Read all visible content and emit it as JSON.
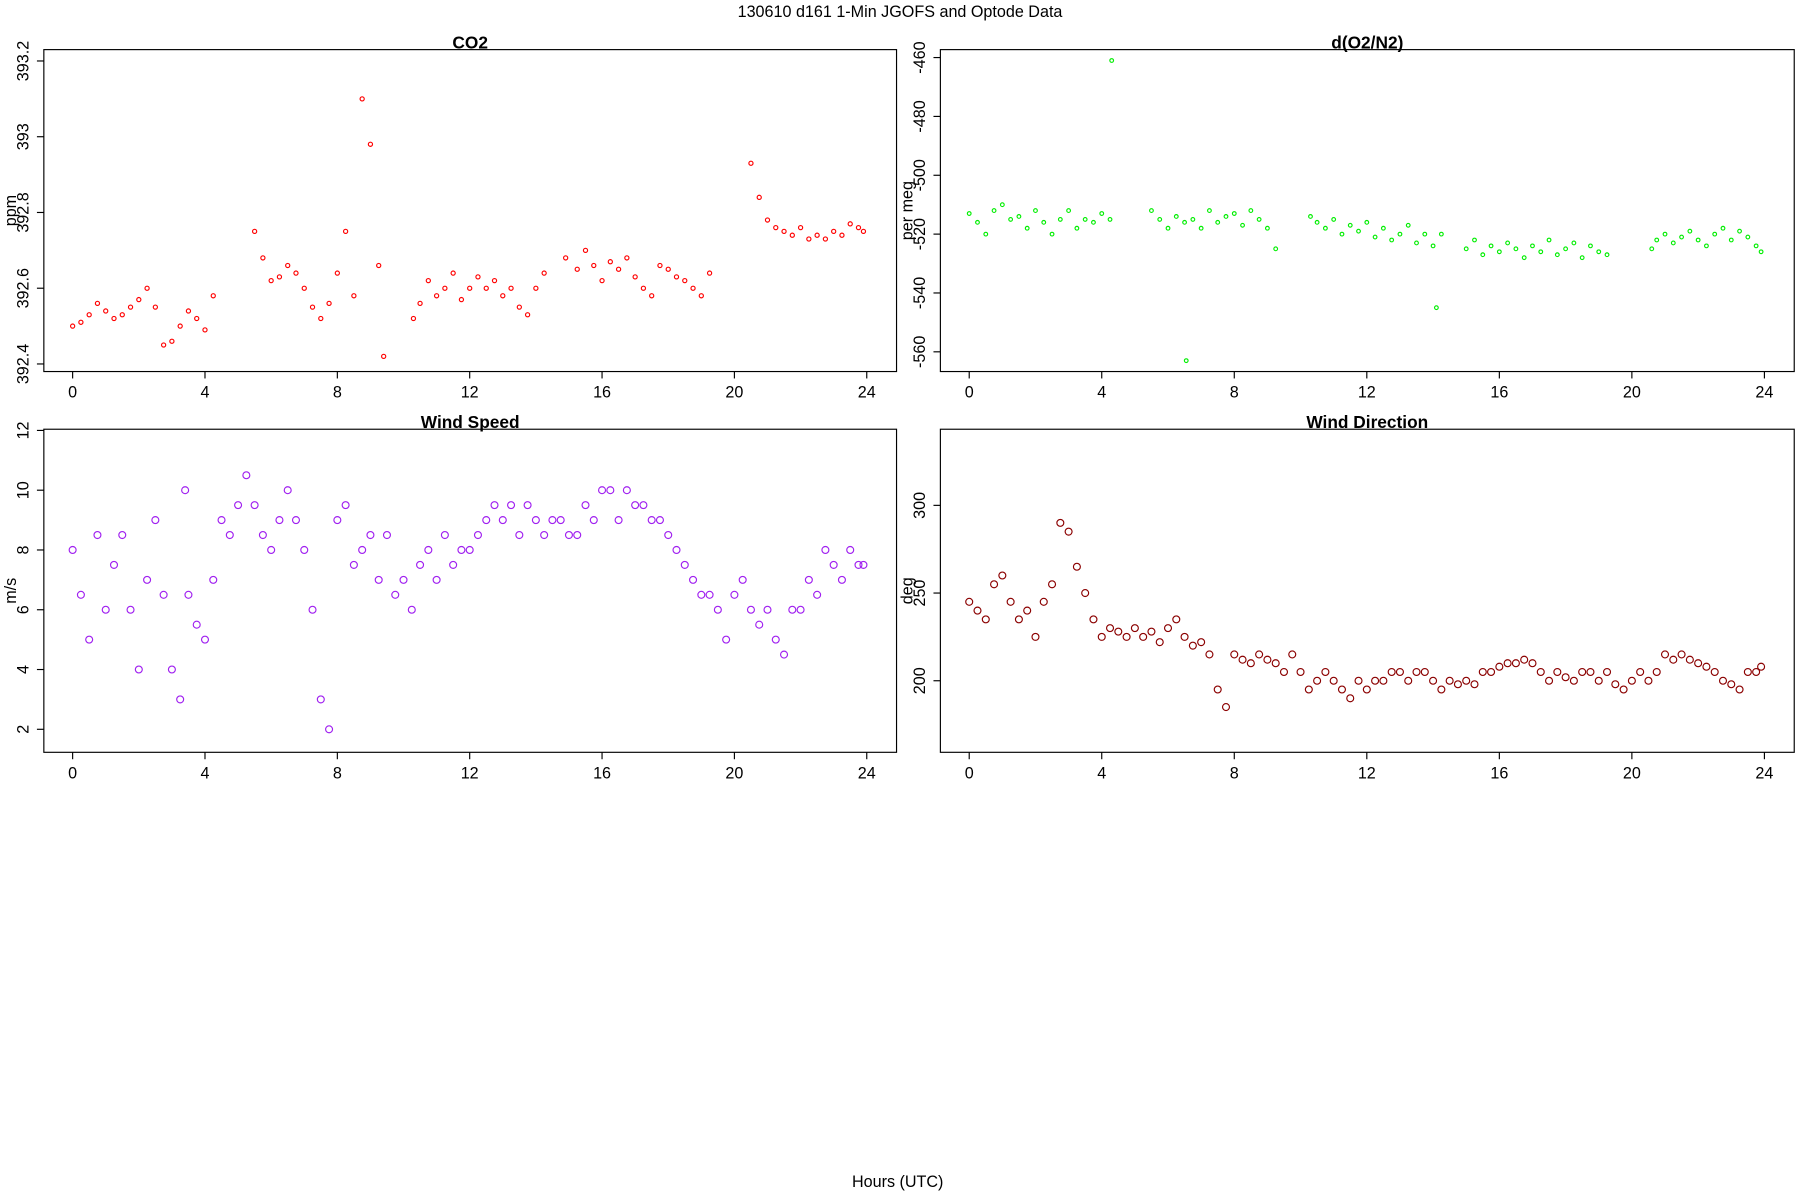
{
  "title": "130610   d161   1-Min  JGOFS and Optode Data",
  "xlabel": "Hours (UTC)",
  "chart_data": [
    {
      "type": "scatter",
      "title": "CO2",
      "ylabel": "ppm",
      "color": "#ff0000",
      "xlim": [
        -0.87,
        24.9
      ],
      "xticks": [
        0,
        4,
        8,
        12,
        16,
        20,
        24
      ],
      "ylim": [
        392.38,
        393.23
      ],
      "yticks": [
        392.4,
        392.6,
        392.8,
        393.0,
        393.2
      ],
      "x": [
        0,
        0.25,
        0.5,
        0.75,
        1,
        1.25,
        1.5,
        1.75,
        2,
        2.25,
        2.5,
        2.75,
        3,
        3.25,
        3.5,
        3.75,
        4,
        4.25,
        5.5,
        5.75,
        6,
        6.25,
        6.5,
        6.75,
        7,
        7.25,
        7.5,
        7.75,
        8,
        8.25,
        8.5,
        8.75,
        9,
        9.25,
        9.4,
        10.3,
        10.5,
        10.75,
        11,
        11.25,
        11.5,
        11.75,
        12,
        12.25,
        12.5,
        12.75,
        13,
        13.25,
        13.5,
        13.75,
        14,
        14.25,
        14.9,
        15.25,
        15.5,
        15.75,
        16,
        16.25,
        16.5,
        16.75,
        17,
        17.25,
        17.5,
        17.75,
        18,
        18.25,
        18.5,
        18.75,
        19,
        19.25,
        20.5,
        20.75,
        21,
        21.25,
        21.5,
        21.75,
        22,
        22.25,
        22.5,
        22.75,
        23,
        23.25,
        23.5,
        23.75,
        23.9
      ],
      "values": [
        392.5,
        392.51,
        392.53,
        392.56,
        392.54,
        392.52,
        392.53,
        392.55,
        392.57,
        392.6,
        392.55,
        392.45,
        392.46,
        392.5,
        392.54,
        392.52,
        392.49,
        392.58,
        392.75,
        392.68,
        392.62,
        392.63,
        392.66,
        392.64,
        392.6,
        392.55,
        392.52,
        392.56,
        392.64,
        392.75,
        392.58,
        393.1,
        392.98,
        392.66,
        392.42,
        392.52,
        392.56,
        392.62,
        392.58,
        392.6,
        392.64,
        392.57,
        392.6,
        392.63,
        392.6,
        392.62,
        392.58,
        392.6,
        392.55,
        392.53,
        392.6,
        392.64,
        392.68,
        392.65,
        392.7,
        392.66,
        392.62,
        392.67,
        392.65,
        392.68,
        392.63,
        392.6,
        392.58,
        392.66,
        392.65,
        392.63,
        392.62,
        392.6,
        392.58,
        392.64,
        392.93,
        392.84,
        392.78,
        392.76,
        392.75,
        392.74,
        392.76,
        392.73,
        392.74,
        392.73,
        392.75,
        392.74,
        392.77,
        392.76,
        392.75
      ]
    },
    {
      "type": "scatter",
      "title": "d(O2/N2)",
      "ylabel": "per meg",
      "color": "#00ee00",
      "xlim": [
        -0.87,
        24.9
      ],
      "xticks": [
        0,
        4,
        8,
        12,
        16,
        20,
        24
      ],
      "ylim": [
        -566.7,
        -457.3
      ],
      "yticks": [
        -560,
        -540,
        -520,
        -500,
        -480,
        -460
      ],
      "x": [
        0,
        0.25,
        0.5,
        0.75,
        1,
        1.25,
        1.5,
        1.75,
        2,
        2.25,
        2.5,
        2.75,
        3,
        3.25,
        3.5,
        3.75,
        4,
        4.25,
        4.3,
        5.5,
        5.75,
        6,
        6.25,
        6.5,
        6.55,
        6.75,
        7,
        7.25,
        7.5,
        7.75,
        8,
        8.25,
        8.5,
        8.75,
        9,
        9.25,
        10.3,
        10.5,
        10.75,
        11,
        11.25,
        11.5,
        11.75,
        12,
        12.25,
        12.5,
        12.75,
        13,
        13.25,
        13.5,
        13.75,
        14,
        14.1,
        14.25,
        15,
        15.25,
        15.5,
        15.75,
        16,
        16.25,
        16.5,
        16.75,
        17,
        17.25,
        17.5,
        17.75,
        18,
        18.25,
        18.5,
        18.75,
        19,
        19.25,
        20.6,
        20.75,
        21,
        21.25,
        21.5,
        21.75,
        22,
        22.25,
        22.5,
        22.75,
        23,
        23.25,
        23.5,
        23.75,
        23.9
      ],
      "values": [
        -513,
        -516,
        -520,
        -512,
        -510,
        -515,
        -514,
        -518,
        -512,
        -516,
        -520,
        -515,
        -512,
        -518,
        -515,
        -516,
        -513,
        -515,
        -461,
        -512,
        -515,
        -518,
        -514,
        -516,
        -563,
        -515,
        -518,
        -512,
        -516,
        -514,
        -513,
        -517,
        -512,
        -515,
        -518,
        -525,
        -514,
        -516,
        -518,
        -515,
        -520,
        -517,
        -519,
        -516,
        -521,
        -518,
        -522,
        -520,
        -517,
        -523,
        -520,
        -524,
        -545,
        -520,
        -525,
        -522,
        -527,
        -524,
        -526,
        -523,
        -525,
        -528,
        -524,
        -526,
        -522,
        -527,
        -525,
        -523,
        -528,
        -524,
        -526,
        -527,
        -525,
        -522,
        -520,
        -523,
        -521,
        -519,
        -522,
        -524,
        -520,
        -518,
        -522,
        -519,
        -521,
        -524,
        -526
      ]
    },
    {
      "type": "scatter",
      "title": "Wind Speed",
      "ylabel": "m/s",
      "color": "#a020f0",
      "xlim": [
        -0.87,
        24.9
      ],
      "xticks": [
        0,
        4,
        8,
        12,
        16,
        20,
        24
      ],
      "ylim": [
        1.23,
        12.04
      ],
      "yticks": [
        2,
        4,
        6,
        8,
        10,
        12
      ],
      "x": [
        0,
        0.25,
        0.5,
        0.75,
        1,
        1.25,
        1.5,
        1.75,
        2,
        2.25,
        2.5,
        2.75,
        3,
        3.25,
        3.4,
        3.5,
        3.75,
        4,
        4.25,
        4.5,
        4.75,
        5,
        5.25,
        5.5,
        5.75,
        6,
        6.25,
        6.5,
        6.75,
        7,
        7.25,
        7.5,
        7.75,
        8,
        8.25,
        8.5,
        8.75,
        9,
        9.25,
        9.5,
        9.75,
        10,
        10.25,
        10.5,
        10.75,
        11,
        11.25,
        11.5,
        11.75,
        12,
        12.25,
        12.5,
        12.75,
        13,
        13.25,
        13.5,
        13.75,
        14,
        14.25,
        14.5,
        14.75,
        15,
        15.25,
        15.5,
        15.75,
        16,
        16.25,
        16.5,
        16.75,
        17,
        17.25,
        17.5,
        17.75,
        18,
        18.25,
        18.5,
        18.75,
        19,
        19.25,
        19.5,
        19.75,
        20,
        20.25,
        20.5,
        20.75,
        21,
        21.25,
        21.5,
        21.75,
        22,
        22.25,
        22.5,
        22.75,
        23,
        23.25,
        23.5,
        23.75,
        23.9
      ],
      "values": [
        8,
        6.5,
        5,
        8.5,
        6,
        7.5,
        8.5,
        6,
        4,
        7,
        9,
        6.5,
        4,
        3,
        10,
        6.5,
        5.5,
        5,
        7,
        9,
        8.5,
        9.5,
        10.5,
        9.5,
        8.5,
        8,
        9,
        10,
        9,
        8,
        6,
        3,
        2,
        9,
        9.5,
        7.5,
        8,
        8.5,
        7,
        8.5,
        6.5,
        7,
        6,
        7.5,
        8,
        7,
        8.5,
        7.5,
        8,
        8,
        8.5,
        9,
        9.5,
        9,
        9.5,
        8.5,
        9.5,
        9,
        8.5,
        9,
        9,
        8.5,
        8.5,
        9.5,
        9,
        10,
        10,
        9,
        10,
        9.5,
        9.5,
        9,
        9,
        8.5,
        8,
        7.5,
        7,
        6.5,
        6.5,
        6,
        5,
        6.5,
        7,
        6,
        5.5,
        6,
        5,
        4.5,
        6,
        6,
        7,
        6.5,
        8,
        7.5,
        7,
        8,
        7.5,
        7.5
      ]
    },
    {
      "type": "scatter",
      "title": "Wind Direction",
      "ylabel": "deg",
      "color": "#8b0000",
      "xlim": [
        -0.87,
        24.9
      ],
      "xticks": [
        0,
        4,
        8,
        12,
        16,
        20,
        24
      ],
      "ylim": [
        159.2,
        343.4
      ],
      "yticks": [
        200,
        250,
        300
      ],
      "x": [
        0,
        0.25,
        0.5,
        0.75,
        1,
        1.25,
        1.5,
        1.75,
        2,
        2.25,
        2.5,
        2.75,
        3,
        3.25,
        3.5,
        3.75,
        4,
        4.25,
        4.5,
        4.75,
        5,
        5.25,
        5.5,
        5.75,
        6,
        6.25,
        6.5,
        6.75,
        7,
        7.25,
        7.5,
        7.75,
        8,
        8.25,
        8.5,
        8.75,
        9,
        9.25,
        9.5,
        9.75,
        10,
        10.25,
        10.5,
        10.75,
        11,
        11.25,
        11.5,
        11.75,
        12,
        12.25,
        12.5,
        12.75,
        13,
        13.25,
        13.5,
        13.75,
        14,
        14.25,
        14.5,
        14.75,
        15,
        15.25,
        15.5,
        15.75,
        16,
        16.25,
        16.5,
        16.75,
        17,
        17.25,
        17.5,
        17.75,
        18,
        18.25,
        18.5,
        18.75,
        19,
        19.25,
        19.5,
        19.75,
        20,
        20.25,
        20.5,
        20.75,
        21,
        21.25,
        21.5,
        21.75,
        22,
        22.25,
        22.5,
        22.75,
        23,
        23.25,
        23.5,
        23.75,
        23.9
      ],
      "values": [
        245,
        240,
        235,
        255,
        260,
        245,
        235,
        240,
        225,
        245,
        255,
        290,
        285,
        265,
        250,
        235,
        225,
        230,
        228,
        225,
        230,
        225,
        228,
        222,
        230,
        235,
        225,
        220,
        222,
        215,
        195,
        185,
        215,
        212,
        210,
        215,
        212,
        210,
        205,
        215,
        205,
        195,
        200,
        205,
        200,
        195,
        190,
        200,
        195,
        200,
        200,
        205,
        205,
        200,
        205,
        205,
        200,
        195,
        200,
        198,
        200,
        198,
        205,
        205,
        208,
        210,
        210,
        212,
        210,
        205,
        200,
        205,
        202,
        200,
        205,
        205,
        200,
        205,
        198,
        195,
        200,
        205,
        200,
        205,
        215,
        212,
        215,
        212,
        210,
        208,
        205,
        200,
        198,
        195,
        205,
        205,
        208
      ]
    }
  ]
}
